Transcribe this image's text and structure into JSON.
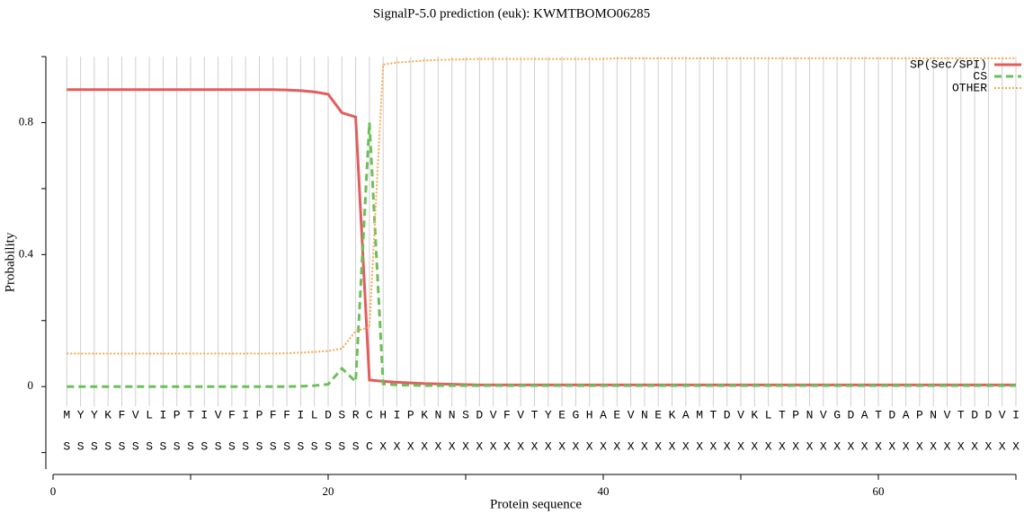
{
  "chart_data": {
    "type": "line",
    "title": "SignalP-5.0 prediction (euk):  KWMTBOMO06285",
    "xlabel": "Protein sequence",
    "ylabel": "Probability",
    "xlim": [
      0,
      70
    ],
    "xticks": [
      0,
      20,
      40,
      60
    ],
    "xminor_ticks": [
      10,
      30,
      50,
      70
    ],
    "ylim": [
      -0.25,
      1
    ],
    "yticks": [
      0,
      0.4,
      0.8
    ],
    "yminor_ticks": [
      -0.2,
      0.2,
      0.6,
      1
    ],
    "grid": true,
    "legend": "upper right",
    "x": [
      1,
      2,
      3,
      4,
      5,
      6,
      7,
      8,
      9,
      10,
      11,
      12,
      13,
      14,
      15,
      16,
      17,
      18,
      19,
      20,
      21,
      22,
      23,
      24,
      25,
      26,
      27,
      28,
      29,
      30,
      31,
      32,
      33,
      34,
      35,
      36,
      37,
      38,
      39,
      40,
      41,
      42,
      43,
      44,
      45,
      46,
      47,
      48,
      49,
      50,
      51,
      52,
      53,
      54,
      55,
      56,
      57,
      58,
      59,
      60,
      61,
      62,
      63,
      64,
      65,
      66,
      67,
      68,
      69,
      70
    ],
    "sequence": [
      "M",
      "Y",
      "Y",
      "K",
      "F",
      "V",
      "L",
      "I",
      "P",
      "T",
      "I",
      "V",
      "F",
      "I",
      "P",
      "F",
      "F",
      "I",
      "L",
      "D",
      "S",
      "R",
      "C",
      "H",
      "I",
      "P",
      "K",
      "N",
      "N",
      "S",
      "D",
      "V",
      "F",
      "V",
      "T",
      "Y",
      "E",
      "G",
      "H",
      "A",
      "E",
      "V",
      "N",
      "E",
      "K",
      "A",
      "M",
      "T",
      "D",
      "V",
      "K",
      "L",
      "T",
      "P",
      "N",
      "V",
      "G",
      "D",
      "A",
      "T",
      "D",
      "A",
      "P",
      "N",
      "V",
      "T",
      "D",
      "D",
      "V",
      "I"
    ],
    "labels": [
      "S",
      "S",
      "S",
      "S",
      "S",
      "S",
      "S",
      "S",
      "S",
      "S",
      "S",
      "S",
      "S",
      "S",
      "S",
      "S",
      "S",
      "S",
      "S",
      "S",
      "S",
      "S",
      "C",
      "X",
      "X",
      "X",
      "X",
      "X",
      "X",
      "X",
      "X",
      "X",
      "X",
      "X",
      "X",
      "X",
      "X",
      "X",
      "X",
      "X",
      "X",
      "X",
      "X",
      "X",
      "X",
      "X",
      "X",
      "X",
      "X",
      "X",
      "X",
      "X",
      "X",
      "X",
      "X",
      "X",
      "X",
      "X",
      "X",
      "X",
      "X",
      "X",
      "X",
      "X",
      "X",
      "X",
      "X",
      "X",
      "X",
      "X"
    ],
    "series": [
      {
        "name": "SP(Sec/SPI)",
        "color": "#e35d5d",
        "dash": "solid",
        "values": [
          0.9,
          0.9,
          0.9,
          0.9,
          0.9,
          0.9,
          0.9,
          0.9,
          0.9,
          0.9,
          0.9,
          0.9,
          0.9,
          0.9,
          0.9,
          0.9,
          0.899,
          0.897,
          0.893,
          0.886,
          0.83,
          0.817,
          0.02,
          0.016,
          0.013,
          0.011,
          0.009,
          0.008,
          0.007,
          0.006,
          0.005,
          0.005,
          0.005,
          0.005,
          0.005,
          0.005,
          0.005,
          0.005,
          0.005,
          0.005,
          0.005,
          0.005,
          0.005,
          0.005,
          0.005,
          0.005,
          0.005,
          0.005,
          0.005,
          0.005,
          0.005,
          0.005,
          0.005,
          0.005,
          0.005,
          0.005,
          0.005,
          0.005,
          0.005,
          0.005,
          0.005,
          0.005,
          0.005,
          0.005,
          0.005,
          0.005,
          0.005,
          0.005,
          0.005,
          0.005
        ]
      },
      {
        "name": "CS",
        "color": "#6cbf5a",
        "dash": "dashed",
        "values": [
          0,
          0,
          0,
          0,
          0,
          0,
          0,
          0,
          0,
          0,
          0,
          0,
          0,
          0,
          0,
          0,
          0,
          0.001,
          0.003,
          0.007,
          0.055,
          0.015,
          0.8,
          0.008,
          0.005,
          0.004,
          0.003,
          0.003,
          0.003,
          0.003,
          0.003,
          0.003,
          0.003,
          0.003,
          0.003,
          0.003,
          0.003,
          0.003,
          0.003,
          0.003,
          0.003,
          0.003,
          0.003,
          0.003,
          0.003,
          0.003,
          0.003,
          0.003,
          0.003,
          0.003,
          0.003,
          0.003,
          0.003,
          0.003,
          0.003,
          0.003,
          0.003,
          0.003,
          0.003,
          0.003,
          0.003,
          0.003,
          0.003,
          0.003,
          0.003,
          0.003,
          0.003,
          0.003,
          0.003,
          0.003
        ]
      },
      {
        "name": "OTHER",
        "color": "#f5a94f",
        "dash": "dotted",
        "values": [
          0.1,
          0.1,
          0.1,
          0.1,
          0.1,
          0.1,
          0.1,
          0.1,
          0.1,
          0.1,
          0.1,
          0.1,
          0.1,
          0.1,
          0.1,
          0.1,
          0.101,
          0.103,
          0.105,
          0.108,
          0.115,
          0.168,
          0.18,
          0.976,
          0.982,
          0.985,
          0.988,
          0.99,
          0.991,
          0.992,
          0.993,
          0.993,
          0.993,
          0.993,
          0.993,
          0.993,
          0.993,
          0.993,
          0.993,
          0.993,
          0.995,
          0.995,
          0.995,
          0.995,
          0.995,
          0.995,
          0.995,
          0.995,
          0.995,
          0.995,
          0.995,
          0.995,
          0.995,
          0.995,
          0.995,
          0.995,
          0.995,
          0.995,
          0.995,
          0.995,
          0.995,
          0.995,
          0.995,
          0.995,
          0.995,
          0.995,
          0.995,
          0.995,
          0.995,
          0.995
        ]
      }
    ]
  }
}
